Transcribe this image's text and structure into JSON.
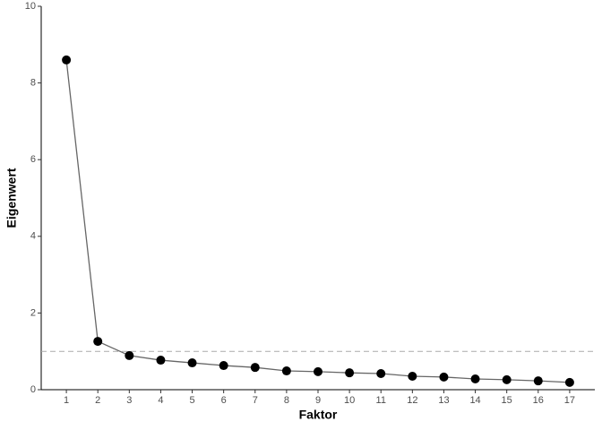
{
  "chart_data": {
    "type": "line",
    "x_label": "Faktor",
    "y_label": "Eigenwert",
    "x": [
      1,
      2,
      3,
      4,
      5,
      6,
      7,
      8,
      9,
      10,
      11,
      12,
      13,
      14,
      15,
      16,
      17
    ],
    "series": [
      {
        "color": "#000000",
        "line_color": "#666666",
        "values": [
          8.6,
          1.26,
          0.89,
          0.77,
          0.7,
          0.63,
          0.58,
          0.49,
          0.47,
          0.44,
          0.42,
          0.35,
          0.33,
          0.28,
          0.26,
          0.23,
          0.19
        ]
      }
    ],
    "xlim": [
      0.2,
      17.8
    ],
    "xticks": [
      1,
      2,
      3,
      4,
      5,
      6,
      7,
      8,
      9,
      10,
      11,
      12,
      13,
      14,
      15,
      16,
      17
    ],
    "ylim": [
      0,
      10
    ],
    "yticks": [
      0,
      2,
      4,
      6,
      8,
      10
    ],
    "hline": 1,
    "hline_color": "#aaaaaa",
    "grid": false
  }
}
